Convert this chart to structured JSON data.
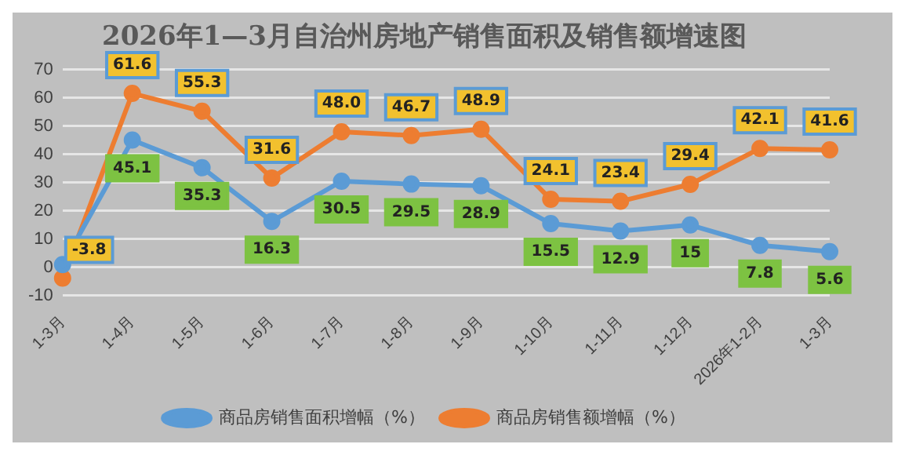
{
  "chart_data": {
    "type": "line",
    "title": "2026年1—3月自治州房地产销售面积及销售额增速图",
    "categories": [
      "1-3月",
      "1-4月",
      "1-5月",
      "1-6月",
      "1-7月",
      "1-8月",
      "1-9月",
      "1-10月",
      "1-11月",
      "1-12月",
      "2026年1-2月",
      "1-3月"
    ],
    "series": [
      {
        "name": "商品房销售面积增幅（%）",
        "color": "#5b9bd5",
        "values": [
          1,
          45.1,
          35.3,
          16.3,
          30.5,
          29.5,
          28.9,
          15.5,
          12.9,
          15,
          7.8,
          5.6
        ],
        "value_labels": [
          null,
          "45.1",
          "35.3",
          "16.3",
          "30.5",
          "29.5",
          "28.9",
          "15.5",
          "12.9",
          "15",
          "7.8",
          "5.6"
        ]
      },
      {
        "name": "商品房销售额增幅（%）",
        "color": "#ed7d31",
        "values": [
          -3.8,
          61.6,
          55.3,
          31.6,
          48.0,
          46.7,
          48.9,
          24.1,
          23.4,
          29.4,
          42.1,
          41.6
        ],
        "value_labels": [
          "-3.8",
          "61.6",
          "55.3",
          "31.6",
          "48.0",
          "46.7",
          "48.9",
          "24.1",
          "23.4",
          "29.4",
          "42.1",
          "41.6"
        ]
      }
    ],
    "ylim": [
      -10,
      70
    ],
    "yticks": [
      -10,
      0,
      10,
      20,
      30,
      40,
      50,
      60,
      70
    ],
    "grid": "y",
    "legend": "bottom",
    "marker": "circle",
    "line_style": "solid"
  }
}
